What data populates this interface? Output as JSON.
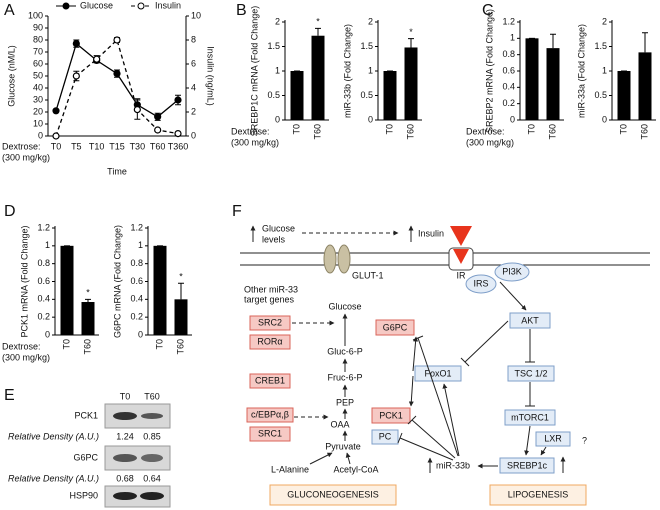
{
  "panel_labels": [
    "A",
    "B",
    "C",
    "D",
    "E",
    "F"
  ],
  "chart_data": [
    {
      "type": "line",
      "categories": [
        "T0",
        "T5",
        "T10",
        "T15",
        "T30",
        "T60",
        "T360"
      ],
      "x_label": "Time",
      "y_label": "Glucose (nM/L)",
      "y2_label": "Insulin (ng/mL)",
      "dextrose_label": "Dextrose:",
      "dose_label": "(300 mg/kg)",
      "ylim": [
        0,
        100
      ],
      "yticks": [
        0,
        10,
        20,
        30,
        40,
        50,
        60,
        70,
        80,
        90,
        100
      ],
      "y2lim": [
        0,
        10
      ],
      "y2ticks": [
        0,
        2,
        4,
        6,
        8,
        10
      ],
      "legend": "top",
      "series": [
        {
          "name": "Glucose",
          "color": "#000000",
          "marker": "filled",
          "line": "solid",
          "values": [
            21,
            77,
            63,
            52,
            26,
            16,
            30
          ],
          "errors": [
            1,
            3,
            2,
            3,
            5,
            3,
            4
          ]
        },
        {
          "name": "Insulin",
          "color": "#000000",
          "marker": "open",
          "line": "dashed",
          "axis": "y2",
          "values": [
            0,
            5,
            6.4,
            8,
            2.2,
            0.5,
            0.2
          ],
          "errors": [
            0,
            0.4,
            0.3,
            0.2,
            0.8,
            0.1,
            0.1
          ]
        }
      ]
    },
    {
      "type": "bar",
      "categories": [
        "T0",
        "T60"
      ],
      "y_label": "SREBP1C mRNA (Fold Change)",
      "values": [
        1,
        1.72
      ],
      "errors": [
        0,
        0.15
      ],
      "annotation": "*",
      "ylim": [
        0,
        2
      ],
      "yticks": [
        0,
        0.5,
        1,
        1.5,
        2
      ],
      "color": "#000000",
      "dextrose_label": "Dextrose:",
      "dose_label": "(300 mg/kg)"
    },
    {
      "type": "bar",
      "categories": [
        "T0",
        "T60"
      ],
      "y_label": "miR-33b (Fold Change)",
      "values": [
        1,
        1.48
      ],
      "errors": [
        0,
        0.18
      ],
      "annotation": "*",
      "ylim": [
        0,
        2
      ],
      "yticks": [
        0,
        0.5,
        1,
        1.5,
        2
      ],
      "color": "#000000"
    },
    {
      "type": "bar",
      "categories": [
        "T0",
        "T60"
      ],
      "y_label": "SREBP2 mRNA (Fold Change)",
      "values": [
        1,
        0.88
      ],
      "errors": [
        0,
        0.17
      ],
      "ylim": [
        0,
        1.2
      ],
      "yticks": [
        0,
        0.2,
        0.4,
        0.6,
        0.8,
        1,
        1.2
      ],
      "color": "#000000",
      "dextrose_label": "Dextrose:",
      "dose_label": "(300 mg/kg)"
    },
    {
      "type": "bar",
      "categories": [
        "T0",
        "T60"
      ],
      "y_label": "miR-33a (Fold Change)",
      "values": [
        1,
        1.38
      ],
      "errors": [
        0,
        0.4
      ],
      "ylim": [
        0,
        2
      ],
      "yticks": [
        0,
        0.5,
        1,
        1.5,
        2
      ],
      "color": "#000000"
    },
    {
      "type": "bar",
      "categories": [
        "T0",
        "T60"
      ],
      "y_label": "PCK1 mRNA (Fold Change)",
      "values": [
        1,
        0.37
      ],
      "errors": [
        0,
        0.03
      ],
      "annotation": "*",
      "ylim": [
        0,
        1.2
      ],
      "yticks": [
        0,
        0.2,
        0.4,
        0.6,
        0.8,
        1,
        1.2
      ],
      "color": "#000000",
      "dextrose_label": "Dextrose:",
      "dose_label": "(300 mg/kg)"
    },
    {
      "type": "bar",
      "categories": [
        "T0",
        "T60"
      ],
      "y_label": "G6PC mRNA (Fold Change)",
      "values": [
        1,
        0.4
      ],
      "errors": [
        0,
        0.18
      ],
      "annotation": "*",
      "ylim": [
        0,
        1.2
      ],
      "yticks": [
        0,
        0.2,
        0.4,
        0.6,
        0.8,
        1,
        1.2
      ],
      "color": "#000000"
    }
  ],
  "blot": {
    "columns": [
      "T0",
      "T60"
    ],
    "bands": [
      "PCK1",
      "G6PC",
      "HSP90"
    ],
    "density_label": "Relative Density (A.U.)",
    "densities": [
      [
        1.24,
        0.85
      ],
      [
        0.68,
        0.64
      ]
    ]
  },
  "diagram": {
    "glucose_levels": [
      "Glucose",
      "levels"
    ],
    "insulin": "Insulin",
    "glut": "GLUT-1",
    "ir": "IR",
    "irs": "IRS",
    "pi3k": "PI3K",
    "other_targets": [
      "Other miR-33",
      "target genes"
    ],
    "glucose": "Glucose",
    "src2": "SRC2",
    "ror": "RORα",
    "g6pc": "G6PC",
    "gluc6p": "Gluc-6-P",
    "fruc6p": "Fruc-6-P",
    "creb1": "CREB1",
    "pep": "PEP",
    "cebp": "c/EBPα,β",
    "pck1": "PCK1",
    "oaa": "OAA",
    "src1": "SRC1",
    "pc": "PC",
    "pyruvate": "Pyruvate",
    "alanine": "L-Alanine",
    "acetyl": "Acetyl-CoA",
    "mir33b": "miR-33b",
    "gluconeogenesis": "GLUCONEOGENESIS",
    "lipogenesis": "LIPOGENESIS",
    "akt": "AKT",
    "foxo1": "FoxO1",
    "tsc": "TSC 1/2",
    "mtorc1": "mTORC1",
    "lxr": "LXR",
    "unknown": "?",
    "srebp1c": "SREBP1c"
  }
}
